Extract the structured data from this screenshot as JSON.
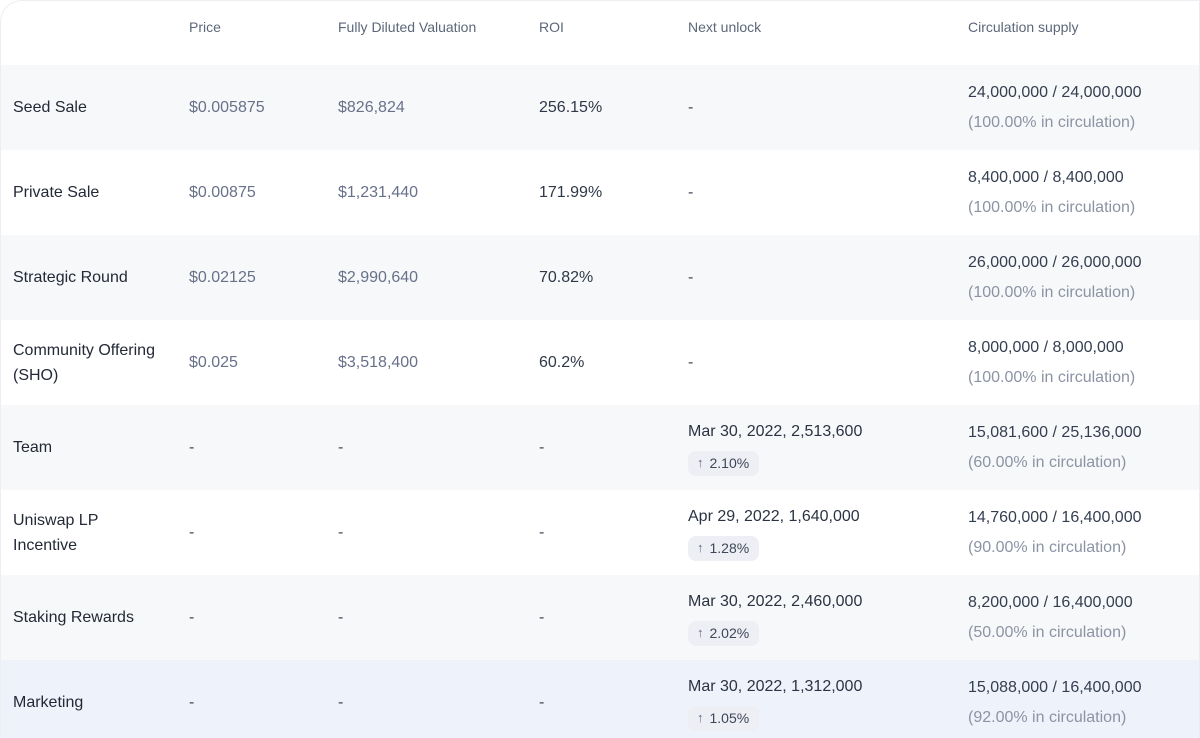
{
  "table": {
    "columns": [
      "",
      "Price",
      "Fully Diluted Valuation",
      "ROI",
      "Next unlock",
      "Circulation supply"
    ],
    "rows": [
      {
        "name": "Seed Sale",
        "price": "$0.005875",
        "fdv": "$826,824",
        "roi": "256.15%",
        "next_unlock": "-",
        "unlock_change": null,
        "supply": "24,000,000 / 24,000,000",
        "supply_note": "(100.00% in circulation)",
        "highlighted": false
      },
      {
        "name": "Private Sale",
        "price": "$0.00875",
        "fdv": "$1,231,440",
        "roi": "171.99%",
        "next_unlock": "-",
        "unlock_change": null,
        "supply": "8,400,000 / 8,400,000",
        "supply_note": "(100.00% in circulation)",
        "highlighted": false
      },
      {
        "name": "Strategic Round",
        "price": "$0.02125",
        "fdv": "$2,990,640",
        "roi": "70.82%",
        "next_unlock": "-",
        "unlock_change": null,
        "supply": "26,000,000 / 26,000,000",
        "supply_note": "(100.00% in circulation)",
        "highlighted": false
      },
      {
        "name": "Community Offering (SHO)",
        "price": "$0.025",
        "fdv": "$3,518,400",
        "roi": "60.2%",
        "next_unlock": "-",
        "unlock_change": null,
        "supply": "8,000,000 / 8,000,000",
        "supply_note": "(100.00% in circulation)",
        "highlighted": false
      },
      {
        "name": "Team",
        "price": "-",
        "fdv": "-",
        "roi": "-",
        "next_unlock": "Mar 30, 2022, 2,513,600",
        "unlock_change": "2.10%",
        "supply": "15,081,600 / 25,136,000",
        "supply_note": "(60.00% in circulation)",
        "highlighted": false
      },
      {
        "name": "Uniswap LP Incentive",
        "price": "-",
        "fdv": "-",
        "roi": "-",
        "next_unlock": "Apr 29, 2022, 1,640,000",
        "unlock_change": "1.28%",
        "supply": "14,760,000 / 16,400,000",
        "supply_note": "(90.00% in circulation)",
        "highlighted": false
      },
      {
        "name": "Staking Rewards",
        "price": "-",
        "fdv": "-",
        "roi": "-",
        "next_unlock": "Mar 30, 2022, 2,460,000",
        "unlock_change": "2.02%",
        "supply": "8,200,000 / 16,400,000",
        "supply_note": "(50.00% in circulation)",
        "highlighted": false
      },
      {
        "name": "Marketing",
        "price": "-",
        "fdv": "-",
        "roi": "-",
        "next_unlock": "Mar 30, 2022, 1,312,000",
        "unlock_change": "1.05%",
        "supply": "15,088,000 / 16,400,000",
        "supply_note": "(92.00% in circulation)",
        "highlighted": true
      }
    ]
  },
  "icons": {
    "arrow_up": "↑"
  },
  "colors": {
    "header_text": "#5d6779",
    "row_label": "#232936",
    "muted_value": "#68718a",
    "dark_value": "#2f3848",
    "supply_note": "#8b93a4",
    "stripe_row_bg": "#f7f8f9",
    "highlight_row_bg": "#edf2fb",
    "badge_bg": "#edeff5",
    "badge_text": "#3e4757"
  }
}
